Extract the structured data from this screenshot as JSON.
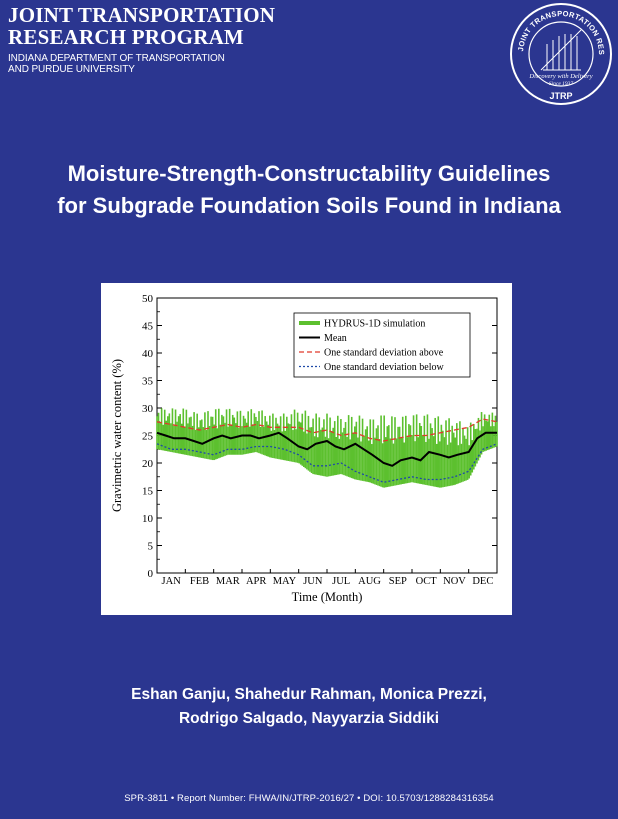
{
  "header": {
    "org_line1": "JOINT TRANSPORTATION",
    "org_line2": "RESEARCH PROGRAM",
    "sub_line1": "INDIANA DEPARTMENT OF TRANSPORTATION",
    "sub_line2": "AND PURDUE UNIVERSITY"
  },
  "seal": {
    "ring_text": "JOINT TRANSPORTATION RESEARCH PROGRAM",
    "motto": "Discovery with Delivery",
    "since": "Since 1937",
    "abbr": "JTRP"
  },
  "title": {
    "line1": "Moisture-Strength-Constructability Guidelines",
    "line2": "for Subgrade Foundation Soils Found in Indiana"
  },
  "chart_data": {
    "type": "line",
    "xlabel": "Time (Month)",
    "ylabel": "Gravimetric water content (%)",
    "categories": [
      "JAN",
      "FEB",
      "MAR",
      "APR",
      "MAY",
      "JUN",
      "JUL",
      "AUG",
      "SEP",
      "OCT",
      "NOV",
      "DEC"
    ],
    "ylim": [
      0,
      50
    ],
    "yticks": [
      0,
      5,
      10,
      15,
      20,
      25,
      30,
      35,
      40,
      45,
      50
    ],
    "legend_position": "top-right",
    "grid": false,
    "series": [
      {
        "name": "HYDRUS-1D simulation",
        "color": "#5cc02e",
        "x": [
          0,
          0.5,
          1,
          1.5,
          2,
          2.5,
          3,
          3.5,
          4,
          4.5,
          5,
          5.5,
          6,
          6.5,
          7,
          7.5,
          8,
          8.5,
          9,
          9.5,
          10,
          10.5,
          11,
          11.5,
          12
        ],
        "low": [
          22.5,
          22,
          21.5,
          21,
          20.5,
          21.5,
          21.5,
          22,
          21,
          20.5,
          20,
          18,
          17.5,
          18,
          17,
          16.5,
          15.5,
          16,
          16.5,
          16,
          15.5,
          16,
          17,
          22,
          23
        ],
        "high": [
          30,
          30,
          30,
          29,
          30,
          30,
          29.5,
          30,
          29,
          29,
          30,
          29,
          29,
          28.5,
          29,
          28,
          29,
          28.5,
          29,
          29,
          28.5,
          28,
          27,
          29.5,
          29
        ]
      },
      {
        "name": "Mean",
        "color": "#000000",
        "x": [
          0,
          0.3,
          0.6,
          1,
          1.3,
          1.6,
          2,
          2.3,
          2.6,
          3,
          3.3,
          3.6,
          4,
          4.3,
          4.6,
          5,
          5.3,
          5.6,
          6,
          6.3,
          6.6,
          7,
          7.3,
          7.6,
          8,
          8.3,
          8.6,
          9,
          9.3,
          9.6,
          10,
          10.3,
          10.6,
          11,
          11.3,
          11.6,
          12
        ],
        "y": [
          25.5,
          25,
          24.5,
          24.5,
          24,
          23.5,
          24.5,
          25,
          24.5,
          25,
          25,
          24.5,
          25,
          25.5,
          24.5,
          23,
          22.5,
          23.5,
          24,
          23,
          22.5,
          23.5,
          22.5,
          21.5,
          20,
          19.5,
          20.5,
          21,
          20.5,
          22,
          21.5,
          21,
          21.5,
          22,
          24.5,
          25.5,
          25.5
        ]
      },
      {
        "name": "One standard deviation above",
        "color": "#e0392b",
        "x": [
          0,
          0.5,
          1,
          1.5,
          2,
          2.5,
          3,
          3.5,
          4,
          4.5,
          5,
          5.5,
          6,
          6.5,
          7,
          7.5,
          8,
          8.5,
          9,
          9.5,
          10,
          10.5,
          11,
          11.5,
          12
        ],
        "y": [
          27.5,
          27,
          26.5,
          26,
          26.5,
          27,
          26.5,
          27,
          26.5,
          26.5,
          26.5,
          25.5,
          26,
          25,
          25.5,
          24.5,
          24,
          24.5,
          25,
          25,
          25.5,
          26,
          26.5,
          28,
          27.5
        ]
      },
      {
        "name": "One standard deviation below",
        "color": "#1f4aa8",
        "x": [
          0,
          0.5,
          1,
          1.5,
          2,
          2.5,
          3,
          3.5,
          4,
          4.5,
          5,
          5.5,
          6,
          6.5,
          7,
          7.5,
          8,
          8.5,
          9,
          9.5,
          10,
          10.5,
          11,
          11.5,
          12
        ],
        "y": [
          23.5,
          22.5,
          22.5,
          22,
          21.5,
          22.5,
          22.5,
          23,
          23,
          22.5,
          21.5,
          19.5,
          19.5,
          20,
          18.5,
          17.5,
          16.5,
          17,
          17.5,
          17,
          17,
          17.5,
          18.5,
          22.5,
          23.5
        ]
      }
    ]
  },
  "authors": {
    "line1": "Eshan Ganju, Shahedur Rahman, Monica Prezzi,",
    "line2": "Rodrigo Salgado, Nayyarzia Siddiki"
  },
  "footer": {
    "text": "SPR-3811 • Report Number: FHWA/IN/JTRP-2016/27 • DOI: 10.5703/1288284316354"
  },
  "colors": {
    "background": "#2b3690",
    "text": "#ffffff"
  }
}
